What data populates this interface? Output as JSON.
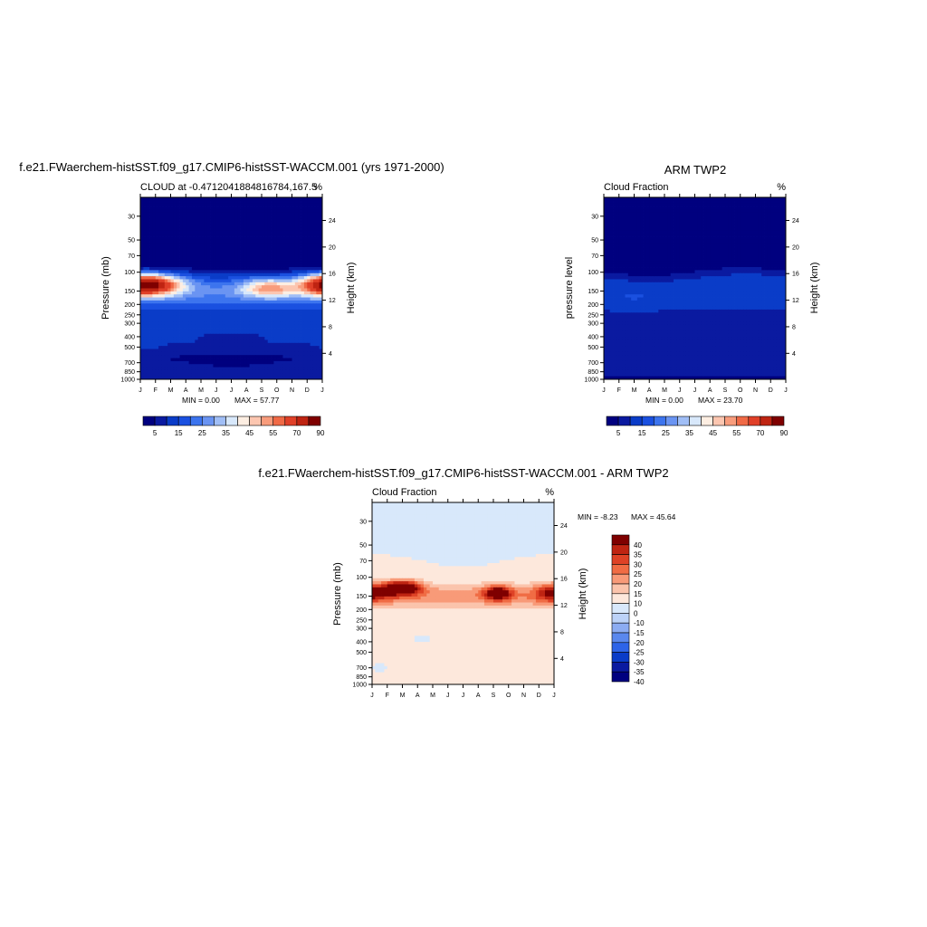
{
  "colors": {
    "model_palette": [
      "#00007f",
      "#0a1aa0",
      "#0a3cc8",
      "#1a50e0",
      "#3c74ee",
      "#6a94f2",
      "#a0bef6",
      "#d8e8fb",
      "#fdeee2",
      "#fcc6b0",
      "#f89c7c",
      "#f06a46",
      "#e04028",
      "#bf2412",
      "#7f0000"
    ],
    "diff_palette": [
      "#00007f",
      "#0a1aa0",
      "#0a3cc8",
      "#2e64e8",
      "#5a88ee",
      "#8cacf2",
      "#bcd2f8",
      "#d8e8fb",
      "#fde8dc",
      "#fbc4ac",
      "#f89a78",
      "#f06c44",
      "#de4226",
      "#bf2412",
      "#7f0000"
    ]
  },
  "chart_data": [
    {
      "type": "heatmap",
      "title": "f.e21.FWaerchem-histSST.f09_g17.CMIP6-histSST-WACCM.001 (yrs 1971-2000)",
      "subtitle_left": "CLOUD at -0.4712041884816784,167.5",
      "subtitle_right": "%",
      "ylabel": "Pressure (mb)",
      "y2label": "Height (km)",
      "x_ticks": [
        "J",
        "F",
        "M",
        "A",
        "M",
        "J",
        "J",
        "A",
        "S",
        "O",
        "N",
        "D",
        "J"
      ],
      "pressure_ticks": [
        30,
        50,
        70,
        100,
        150,
        200,
        250,
        300,
        400,
        500,
        700,
        850,
        1000
      ],
      "height_ticks": [
        4,
        8,
        12,
        16,
        20,
        24
      ],
      "min_label": "MIN =   0.00",
      "max_label": "MAX =  57.77",
      "colorbar_labels": [
        "5",
        "15",
        "25",
        "35",
        "45",
        "55",
        "70",
        "90"
      ],
      "levels": [
        0,
        5,
        10,
        15,
        20,
        25,
        30,
        35,
        40,
        45,
        50,
        55,
        60,
        70,
        80,
        90
      ]
    },
    {
      "type": "heatmap",
      "title": "ARM TWP2",
      "subtitle_left": "Cloud Fraction",
      "subtitle_right": "%",
      "ylabel": "pressure level",
      "y2label": "Height (km)",
      "x_ticks": [
        "J",
        "F",
        "M",
        "A",
        "M",
        "J",
        "J",
        "A",
        "S",
        "O",
        "N",
        "D",
        "J"
      ],
      "pressure_ticks": [
        30,
        50,
        70,
        100,
        150,
        200,
        250,
        300,
        400,
        500,
        700,
        850,
        1000
      ],
      "height_ticks": [
        4,
        8,
        12,
        16,
        20,
        24
      ],
      "min_label": "MIN =   0.00",
      "max_label": "MAX =  23.70",
      "colorbar_labels": [
        "5",
        "15",
        "25",
        "35",
        "45",
        "55",
        "70",
        "90"
      ],
      "levels": [
        0,
        5,
        10,
        15,
        20,
        25,
        30,
        35,
        40,
        45,
        50,
        55,
        60,
        70,
        80,
        90
      ]
    },
    {
      "type": "heatmap",
      "title": "f.e21.FWaerchem-histSST.f09_g17.CMIP6-histSST-WACCM.001 - ARM TWP2",
      "subtitle_left": "Cloud Fraction",
      "subtitle_right": "%",
      "ylabel": "Pressure (mb)",
      "y2label": "Height (km)",
      "x_ticks": [
        "J",
        "F",
        "M",
        "A",
        "M",
        "J",
        "J",
        "A",
        "S",
        "O",
        "N",
        "D",
        "J"
      ],
      "pressure_ticks": [
        30,
        50,
        70,
        100,
        150,
        200,
        250,
        300,
        400,
        500,
        700,
        850,
        1000
      ],
      "height_ticks": [
        4,
        8,
        12,
        16,
        20,
        24
      ],
      "min_label": "MIN =  -8.23",
      "max_label": "MAX =  45.64",
      "colorbar_labels": [
        "40",
        "35",
        "30",
        "25",
        "20",
        "15",
        "10",
        "0",
        "-10",
        "-15",
        "-20",
        "-25",
        "-30",
        "-35",
        "-40"
      ],
      "levels": [
        -45,
        -40,
        -35,
        -30,
        -25,
        -20,
        -15,
        -10,
        0,
        10,
        15,
        20,
        25,
        30,
        35,
        40
      ]
    }
  ]
}
